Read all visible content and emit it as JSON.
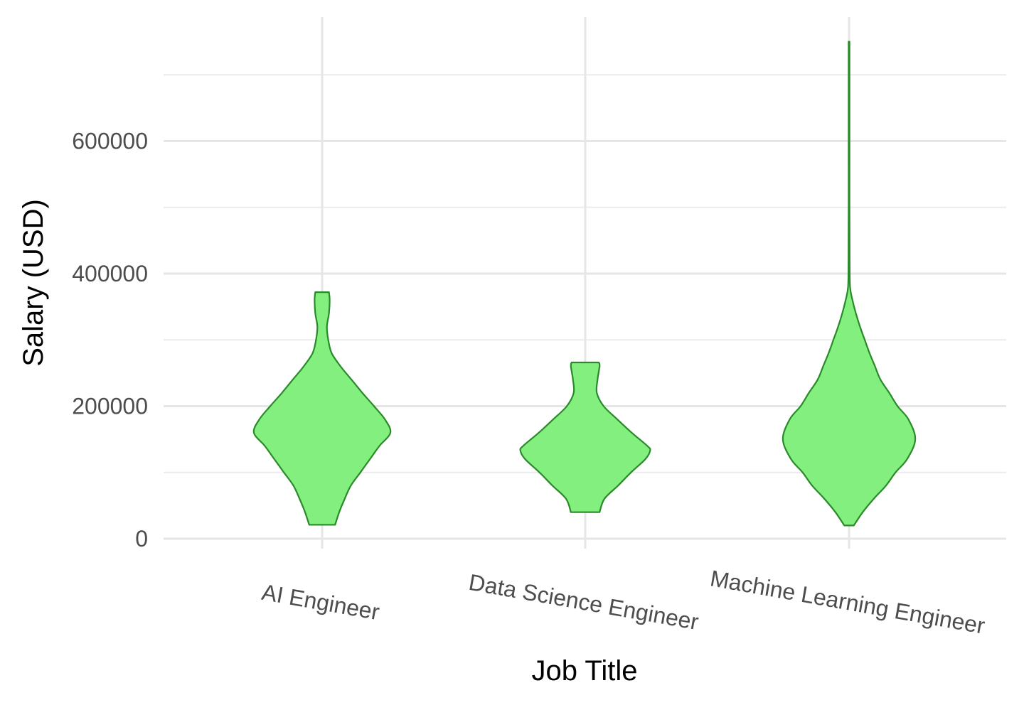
{
  "chart_data": {
    "type": "violin",
    "title": "",
    "xlabel": "Job Title",
    "ylabel": "Salary (USD)",
    "ylim": [
      -10000,
      785000
    ],
    "y_ticks": [
      0,
      200000,
      400000,
      600000
    ],
    "y_tick_labels": [
      "0",
      "200000",
      "400000",
      "600000"
    ],
    "y_minor_ticks": [
      100000,
      300000,
      500000,
      700000
    ],
    "categories": [
      "AI Engineer",
      "Data Science Engineer",
      "Machine Learning Engineer"
    ],
    "category_label_rotation_deg": 10,
    "grid": true,
    "fill_color": "#82ef7e",
    "line_color": "#2a8a2a",
    "series": [
      {
        "category": "AI Engineer",
        "min": 21000,
        "max": 372000,
        "profile": [
          [
            21000,
            0.19
          ],
          [
            40000,
            0.25
          ],
          [
            60000,
            0.33
          ],
          [
            80000,
            0.42
          ],
          [
            100000,
            0.56
          ],
          [
            120000,
            0.7
          ],
          [
            140000,
            0.84
          ],
          [
            160000,
            1.0
          ],
          [
            180000,
            0.92
          ],
          [
            200000,
            0.76
          ],
          [
            220000,
            0.59
          ],
          [
            240000,
            0.43
          ],
          [
            260000,
            0.27
          ],
          [
            280000,
            0.14
          ],
          [
            300000,
            0.09
          ],
          [
            320000,
            0.07
          ],
          [
            340000,
            0.1
          ],
          [
            360000,
            0.11
          ],
          [
            372000,
            0.1
          ]
        ]
      },
      {
        "category": "Data Science Engineer",
        "min": 40000,
        "max": 266000,
        "profile": [
          [
            40000,
            0.21
          ],
          [
            60000,
            0.28
          ],
          [
            80000,
            0.48
          ],
          [
            100000,
            0.67
          ],
          [
            120000,
            0.88
          ],
          [
            133000,
            0.95
          ],
          [
            140000,
            0.91
          ],
          [
            160000,
            0.68
          ],
          [
            180000,
            0.47
          ],
          [
            200000,
            0.27
          ],
          [
            220000,
            0.17
          ],
          [
            240000,
            0.18
          ],
          [
            260000,
            0.21
          ],
          [
            266000,
            0.2
          ]
        ]
      },
      {
        "category": "Machine Learning Engineer",
        "min": 20000,
        "max": 750000,
        "profile": [
          [
            20000,
            0.07
          ],
          [
            40000,
            0.2
          ],
          [
            60000,
            0.36
          ],
          [
            80000,
            0.54
          ],
          [
            100000,
            0.68
          ],
          [
            120000,
            0.85
          ],
          [
            150000,
            0.97
          ],
          [
            180000,
            0.87
          ],
          [
            200000,
            0.71
          ],
          [
            220000,
            0.59
          ],
          [
            240000,
            0.46
          ],
          [
            260000,
            0.38
          ],
          [
            280000,
            0.3
          ],
          [
            300000,
            0.23
          ],
          [
            320000,
            0.16
          ],
          [
            340000,
            0.1
          ],
          [
            360000,
            0.05
          ],
          [
            380000,
            0.015
          ],
          [
            420000,
            0.008
          ],
          [
            500000,
            0.006
          ],
          [
            600000,
            0.006
          ],
          [
            750000,
            0.006
          ]
        ]
      }
    ]
  }
}
